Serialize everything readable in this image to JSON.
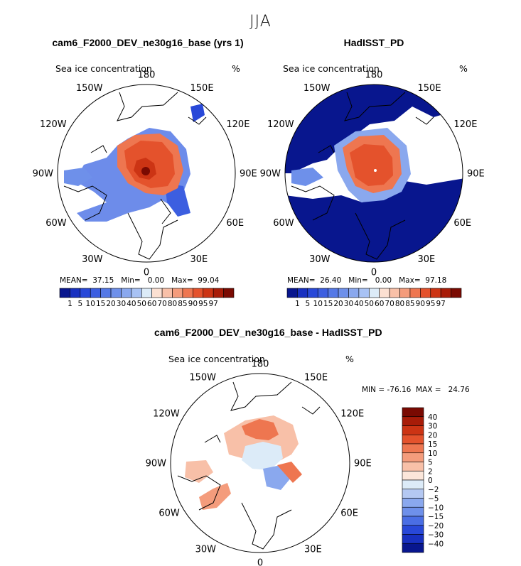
{
  "season": "JJA",
  "panels": [
    {
      "title": "cam6_F2000_DEV_ne30g16_base (yrs 1)",
      "field": "Sea ice concentration",
      "units": "%",
      "stats": "MEAN=  37.15   Min=   0.00   Max=  99.04"
    },
    {
      "title": "HadISST_PD",
      "field": "Sea ice concentration",
      "units": "%",
      "stats": "MEAN=  26.40   Min=   0.00   Max=  97.18"
    },
    {
      "title": "cam6_F2000_DEV_ne30g16_base - HadISST_PD",
      "field": "Sea ice concentration",
      "units": "%",
      "stats": "MIN = -76.16  MAX =   24.76"
    }
  ],
  "chart_data": [
    {
      "type": "heatmap",
      "projection": "north polar stereographic",
      "title": "cam6_F2000_DEV_ne30g16_base (yrs 1)",
      "field": "Sea ice concentration",
      "units": "%",
      "mean": 37.15,
      "min": 0.0,
      "max": 99.04,
      "longitude_labels": [
        "180",
        "150E",
        "120E",
        "90E",
        "60E",
        "30E",
        "0",
        "30W",
        "60W",
        "90W",
        "120W",
        "150W"
      ],
      "colorbar_levels": [
        1,
        5,
        10,
        15,
        20,
        30,
        40,
        50,
        60,
        70,
        80,
        85,
        90,
        95,
        97
      ],
      "colorbar_colors": [
        "#08168e",
        "#1830c0",
        "#2848d8",
        "#3c5ee0",
        "#5478e6",
        "#6e90ea",
        "#8aa8ee",
        "#a8c2f4",
        "#dcebf8",
        "#fbe0d2",
        "#f8c0a8",
        "#f49c7c",
        "#ee7650",
        "#e4522c",
        "#cc3414",
        "#a81c08",
        "#7a0a02"
      ]
    },
    {
      "type": "heatmap",
      "projection": "north polar stereographic",
      "title": "HadISST_PD",
      "field": "Sea ice concentration",
      "units": "%",
      "mean": 26.4,
      "min": 0.0,
      "max": 97.18,
      "longitude_labels": [
        "180",
        "150E",
        "120E",
        "90E",
        "60E",
        "30E",
        "0",
        "30W",
        "60W",
        "90W",
        "120W",
        "150W"
      ],
      "colorbar_levels": [
        1,
        5,
        10,
        15,
        20,
        30,
        40,
        50,
        60,
        70,
        80,
        85,
        90,
        95,
        97
      ],
      "colorbar_colors": [
        "#08168e",
        "#1830c0",
        "#2848d8",
        "#3c5ee0",
        "#5478e6",
        "#6e90ea",
        "#8aa8ee",
        "#a8c2f4",
        "#dcebf8",
        "#fbe0d2",
        "#f8c0a8",
        "#f49c7c",
        "#ee7650",
        "#e4522c",
        "#cc3414",
        "#a81c08",
        "#7a0a02"
      ]
    },
    {
      "type": "heatmap",
      "projection": "north polar stereographic",
      "title": "cam6_F2000_DEV_ne30g16_base - HadISST_PD",
      "field": "Sea ice concentration",
      "units": "%",
      "min": -76.16,
      "max": 24.76,
      "longitude_labels": [
        "180",
        "150E",
        "120E",
        "90E",
        "60E",
        "30E",
        "0",
        "30W",
        "60W",
        "90W",
        "120W",
        "150W"
      ],
      "colorbar_levels": [
        40,
        30,
        20,
        15,
        10,
        5,
        2,
        0,
        -2,
        -5,
        -10,
        -15,
        -20,
        -30,
        -40
      ],
      "colorbar_tick_labels": [
        "40",
        "30",
        "20",
        "15",
        "10",
        "5",
        "2",
        "0",
        "−2",
        "−5",
        "−10",
        "−15",
        "−20",
        "−30",
        "−40"
      ],
      "colorbar_colors": [
        "#7a0a02",
        "#a81c08",
        "#cc3414",
        "#e4522c",
        "#ee7650",
        "#f49c7c",
        "#f8c0a8",
        "#fbe6da",
        "#dcebf8",
        "#b4c8f2",
        "#8aa8ee",
        "#6e90ea",
        "#4a6ee4",
        "#2848d8",
        "#1830c0",
        "#08168e"
      ]
    }
  ]
}
